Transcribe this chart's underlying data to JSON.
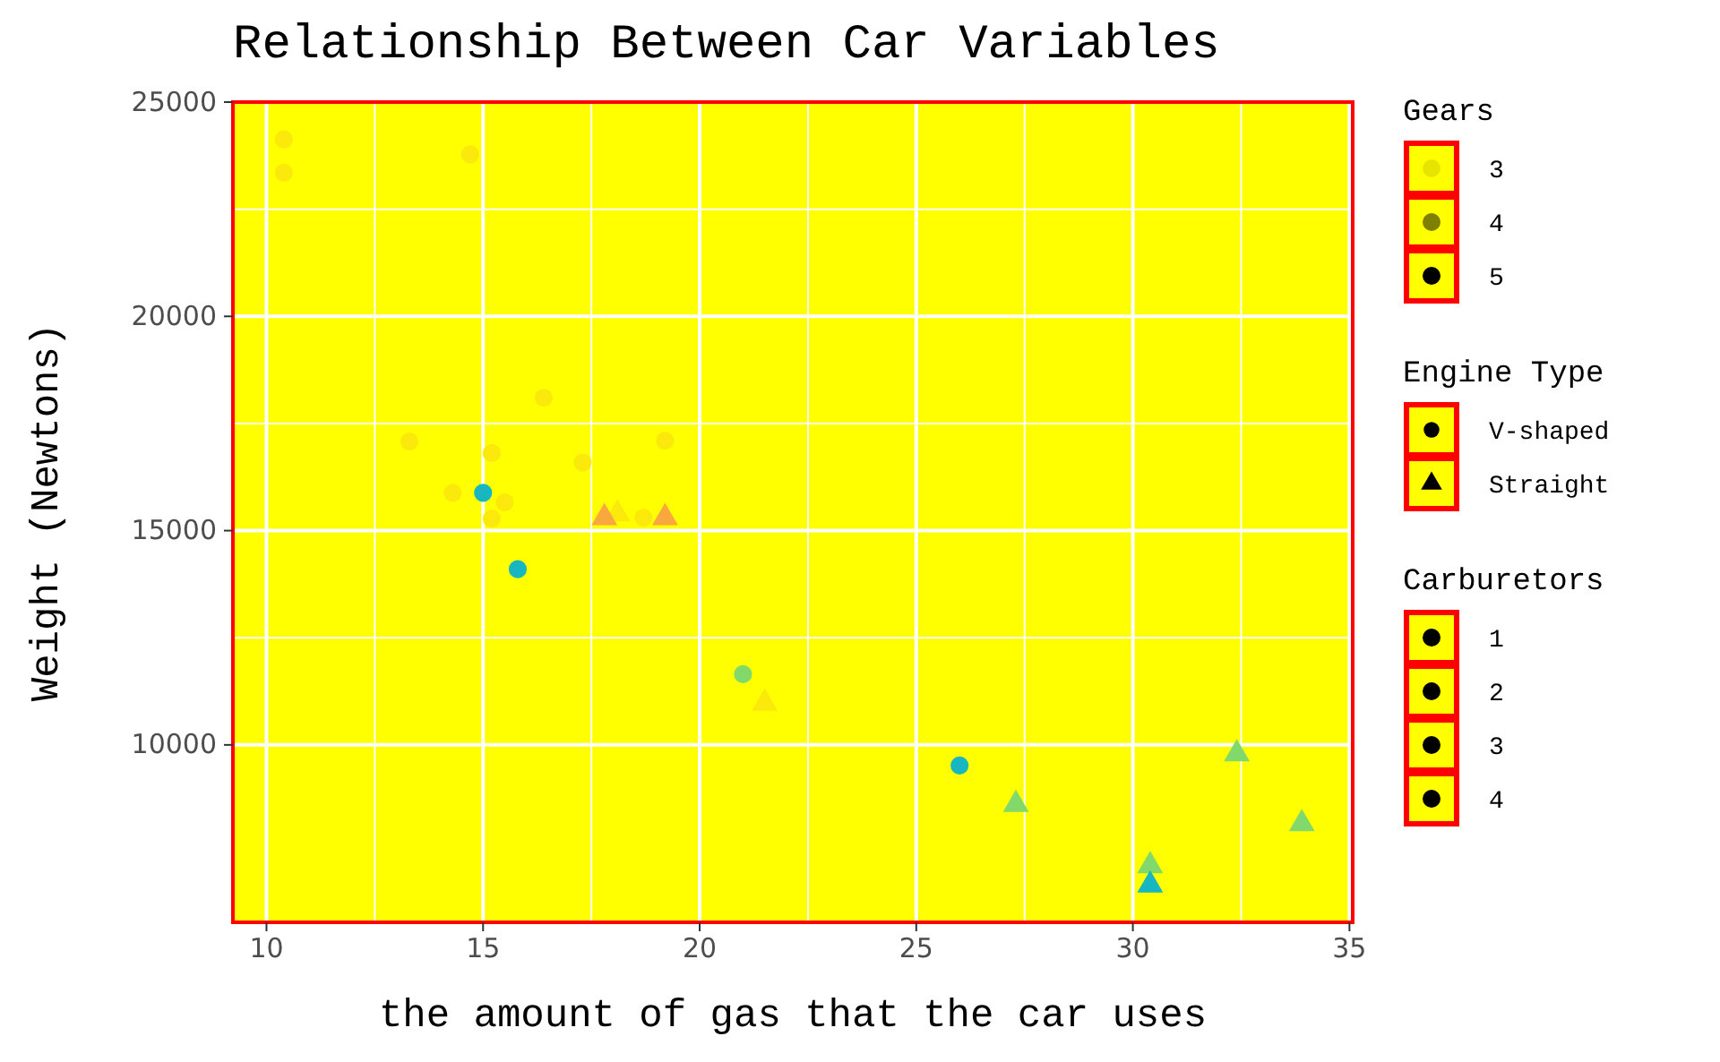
{
  "chart_data": {
    "type": "scatter",
    "title": "Relationship Between Car Variables",
    "xlabel": "the amount of gas that the car uses",
    "ylabel": "Weight (Newtons)",
    "legend_title": "Engine Type",
    "legend": "right",
    "grid": true,
    "xlim": [
      9.225,
      35.075
    ],
    "xticks": [
      10,
      15,
      20,
      25,
      30,
      35
    ],
    "ylim": [
      5860,
      25000
    ],
    "yticks": [
      10000,
      15000,
      20000,
      25000
    ],
    "series": [
      {
        "name": "V-shaped",
        "marker": "circle",
        "x": [
          18.7,
          14.3,
          16.4,
          17.3,
          15.2,
          10.4,
          10.4,
          14.7,
          15.5,
          15.2,
          13.3,
          19.2,
          21.0,
          26.0,
          15.8,
          15.0
        ],
        "values": [
          15300,
          15880,
          18100,
          16590,
          16810,
          23350,
          24130,
          23780,
          15660,
          15280,
          17080,
          17100,
          11650,
          9520,
          14100,
          15880
        ],
        "colors": [
          "#fbe90c",
          "#fbe90c",
          "#fbe90c",
          "#fbe90c",
          "#fbe90c",
          "#fbe90c",
          "#fbe90c",
          "#fbe90c",
          "#fbe90c",
          "#fbe90c",
          "#fbe90c",
          "#fbe90c",
          "#80d96a",
          "#17b6c0",
          "#17b6c0",
          "#17b6c0"
        ]
      },
      {
        "name": "Straight",
        "marker": "triangle",
        "x": [
          18.1,
          19.2,
          17.8,
          32.4,
          30.4,
          33.9,
          21.5,
          27.3,
          30.4
        ],
        "values": [
          15390,
          15300,
          15300,
          9790,
          7180,
          8160,
          10970,
          8610,
          6730
        ],
        "colors": [
          "#fbe90c",
          "#f8a83c",
          "#f8a83c",
          "#80d96a",
          "#80d96a",
          "#80d96a",
          "#fbe90c",
          "#80d96a",
          "#17b6c0"
        ]
      }
    ],
    "annotations": [
      "Gears",
      "3",
      "4",
      "5",
      "Carburetors",
      "1",
      "2",
      "3",
      "4"
    ]
  }
}
